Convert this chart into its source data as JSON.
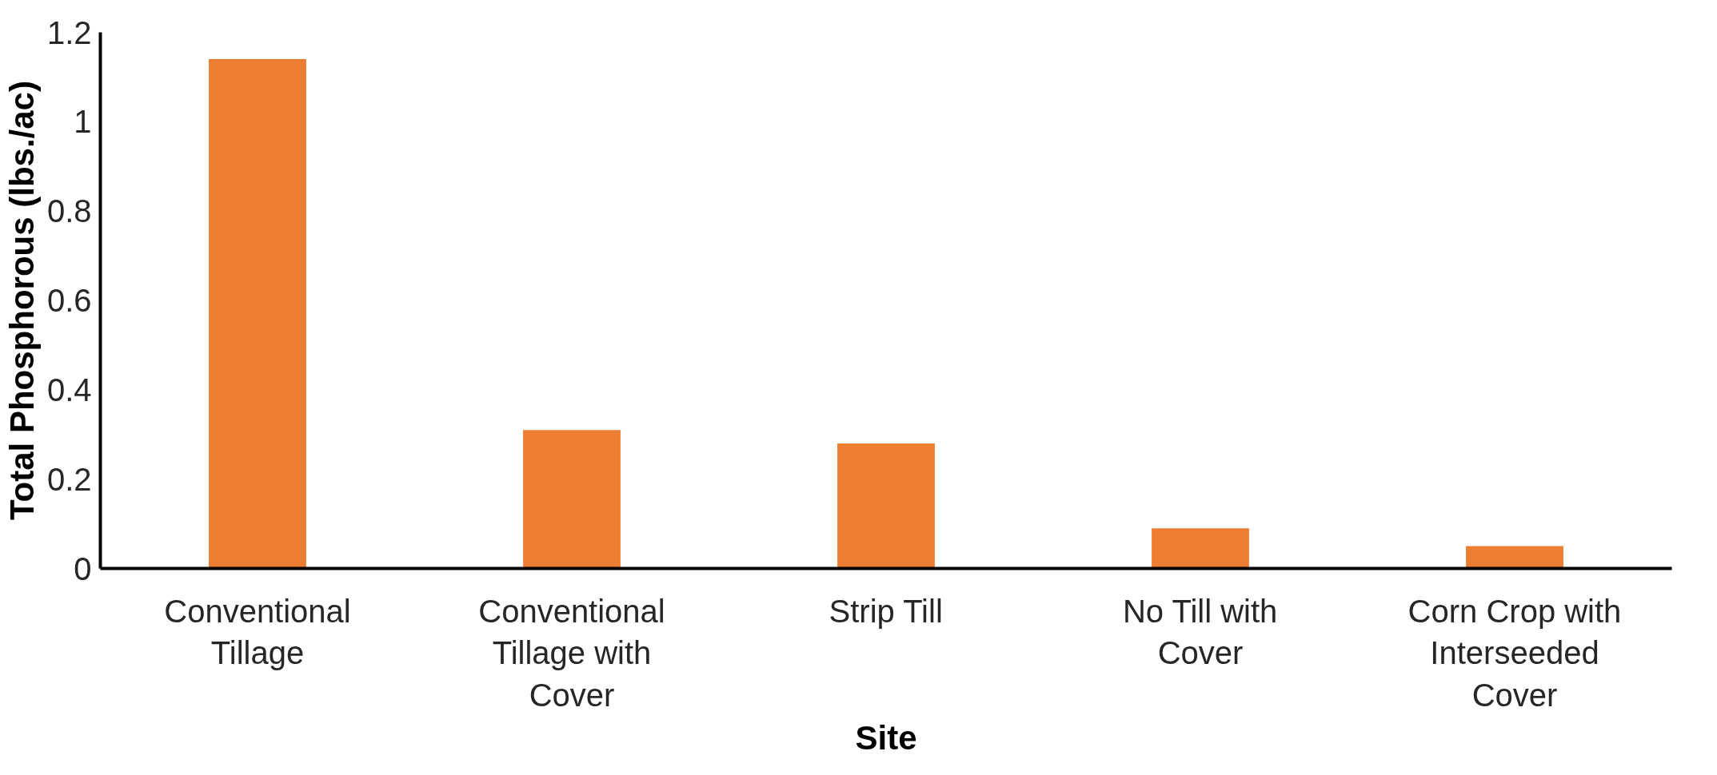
{
  "chart_data": {
    "type": "bar",
    "xlabel": "Site",
    "ylabel": "Total Phosphorous (lbs./ac)",
    "categories": [
      "Conventional Tillage",
      "Conventional Tillage with Cover",
      "Strip Till",
      "No Till with Cover",
      "Corn Crop with Interseeded Cover"
    ],
    "values": [
      1.14,
      0.31,
      0.28,
      0.09,
      0.05
    ],
    "color": "#ed7d31",
    "ylim": [
      0,
      1.2
    ],
    "yticks": [
      0,
      0.2,
      0.4,
      0.6,
      0.8,
      1,
      1.2
    ],
    "grid": false
  }
}
